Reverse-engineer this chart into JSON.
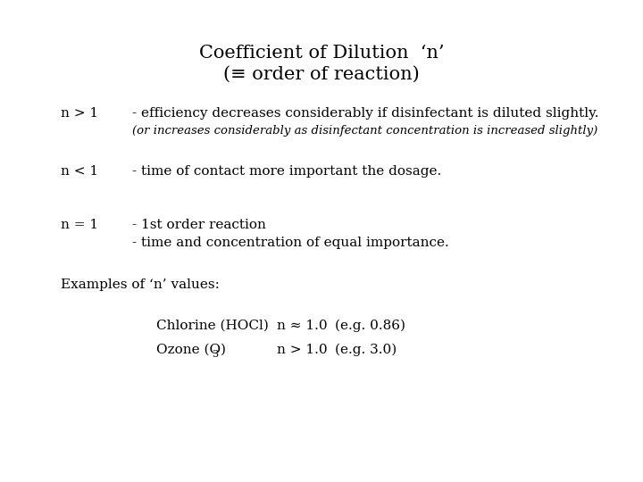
{
  "title_line1": "Coefficient of Dilution  ‘n’",
  "title_line2": "(≡ order of reaction)",
  "bg_color": "#ffffff",
  "text_color": "#000000",
  "title_fontsize": 15,
  "body_fontsize": 11,
  "italic_fontsize": 9.5,
  "small_fontsize": 11,
  "label_n1": "n > 1",
  "text_n1": "- efficiency decreases considerably if disinfectant is diluted slightly.",
  "text_n1_italic": "(or increases considerably as disinfectant concentration is increased slightly)",
  "label_n2": "n < 1",
  "text_n2": "- time of contact more important the dosage.",
  "label_n3": "n = 1",
  "text_n3a": "- 1st order reaction",
  "text_n3b": "- time and concentration of equal importance.",
  "examples_header": "Examples of ‘n’ values:",
  "chlorine_label": "Chlorine (HOCl)",
  "chlorine_n": "n ≈ 1.0",
  "chlorine_eg": "(e.g. 0.86)",
  "ozone_label": "Ozone (O",
  "ozone_sub": "3",
  "ozone_label2": ")",
  "ozone_n": "n > 1.0",
  "ozone_eg": "(e.g. 3.0)"
}
